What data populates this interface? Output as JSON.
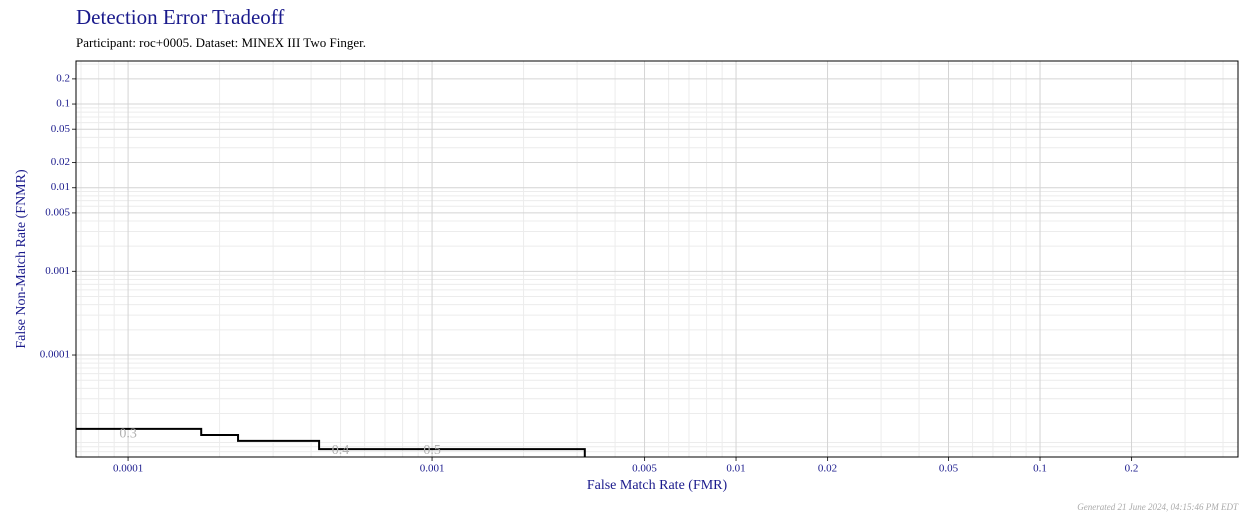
{
  "chart_data": {
    "type": "line",
    "title": "Detection Error Tradeoff",
    "subtitle": "Participant: roc+0005. Dataset: MINEX III Two Finger.",
    "x_label": "False Match Rate (FMR)",
    "y_label": "False Non-Match Rate (FNMR)",
    "footer": "Generated 21 June 2024, 04:15:46 PM EDT",
    "log_x": true,
    "log_y": true,
    "grid": true,
    "xlim": [
      6.74e-05,
      0.448
    ],
    "ylim": [
      6.04e-06,
      0.327
    ],
    "xticks": [
      0.0001,
      0.001,
      0.005,
      0.01,
      0.02,
      0.05,
      0.1,
      0.2
    ],
    "yticks": [
      0.2,
      0.1,
      0.05,
      0.02,
      0.01,
      0.005,
      0.001,
      0.0001
    ],
    "x_minor_ticks": [
      7e-05,
      8e-05,
      9e-05,
      0.0002,
      0.0003,
      0.0004,
      0.0005,
      0.0006,
      0.0007,
      0.0008,
      0.0009,
      0.002,
      0.003,
      0.004,
      0.006,
      0.007,
      0.008,
      0.009,
      0.03,
      0.04,
      0.06,
      0.07,
      0.08,
      0.09,
      0.3,
      0.4
    ],
    "y_minor_ticks": [
      7e-06,
      8e-06,
      9e-06,
      2e-05,
      3e-05,
      4e-05,
      5e-05,
      6e-05,
      7e-05,
      8e-05,
      9e-05,
      0.0002,
      0.0003,
      0.0004,
      0.0005,
      0.0006,
      0.0007,
      0.0008,
      0.0009,
      0.002,
      0.003,
      0.004,
      0.006,
      0.007,
      0.008,
      0.009,
      0.03,
      0.04,
      0.06,
      0.07,
      0.08,
      0.09,
      0.3
    ],
    "series": [
      {
        "color": "#000000",
        "x": [
          6.74e-05,
          0.000174,
          0.000174,
          0.00023,
          0.00023,
          0.000425,
          0.000425,
          0.00318,
          0.00318
        ],
        "values": [
          1.31e-05,
          1.31e-05,
          1.107e-05,
          1.107e-05,
          9.4e-06,
          9.4e-06,
          7.5e-06,
          7.5e-06,
          6.04e-06
        ]
      }
    ],
    "annotations": [
      {
        "text": "0.3",
        "x": 0.0001,
        "y": 1.13e-05
      },
      {
        "text": "0.4",
        "x": 0.0005,
        "y": 7.2e-06
      },
      {
        "text": "0.5",
        "x": 0.001,
        "y": 7.2e-06
      }
    ]
  }
}
